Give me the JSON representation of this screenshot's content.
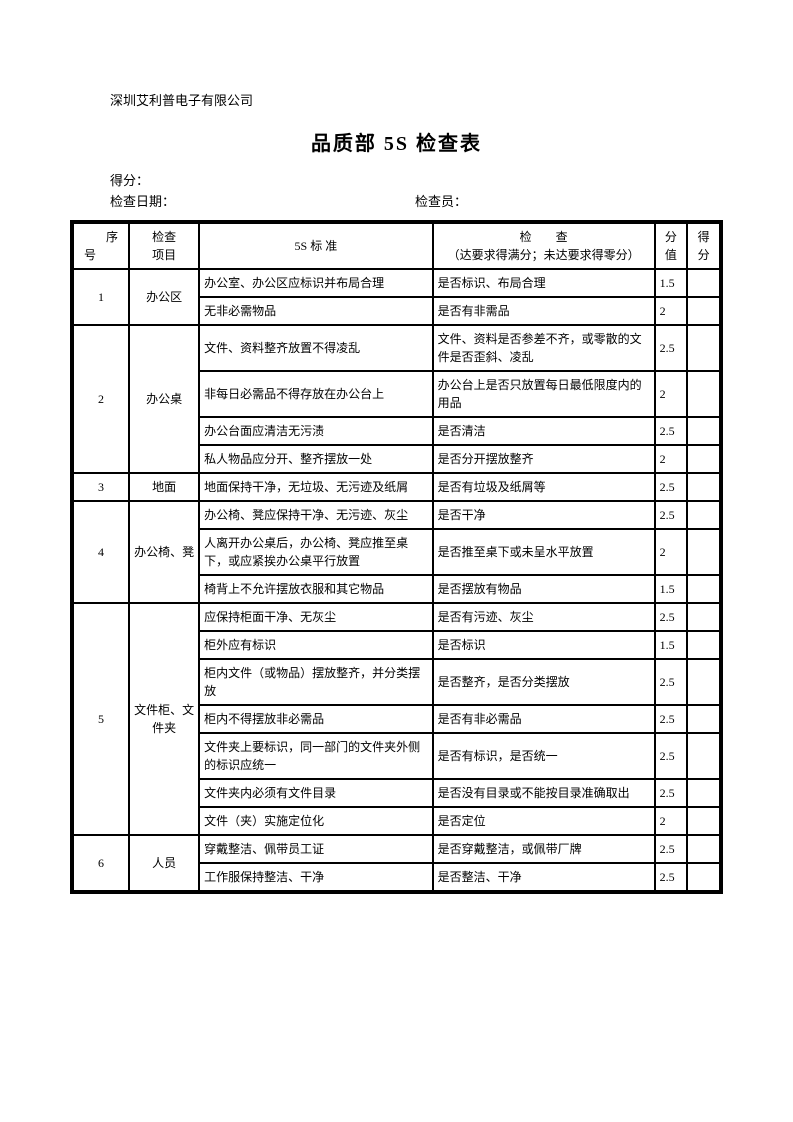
{
  "company": "深圳艾利普电子有限公司",
  "title": "品质部 5S 检查表",
  "meta": {
    "score_label": "得分：",
    "date_label": "检查日期：",
    "inspector_label": "检查员："
  },
  "headers": {
    "seq_top": "序",
    "seq_bottom": "号",
    "item": "检查\n项目",
    "standard": "5S 标 准",
    "check": "检　　查\n（达要求得满分；未达要求得零分）",
    "value": "分\n值",
    "score": "得分"
  },
  "groups": [
    {
      "seq": "1",
      "item": "办公区",
      "rows": [
        {
          "std": "办公室、办公区应标识并布局合理",
          "chk": "是否标识、布局合理",
          "val": "1.5"
        },
        {
          "std": "无非必需物品",
          "chk": "是否有非需品",
          "val": "2"
        }
      ]
    },
    {
      "seq": "2",
      "item": "办公桌",
      "rows": [
        {
          "std": "文件、资料整齐放置不得凌乱",
          "chk": "文件、资料是否参差不齐，或零散的文件是否歪斜、凌乱",
          "val": "2.5"
        },
        {
          "std": "非每日必需品不得存放在办公台上",
          "chk": "办公台上是否只放置每日最低限度内的用品",
          "val": "2"
        },
        {
          "std": "办公台面应清洁无污渍",
          "chk": "是否清洁",
          "val": "2.5"
        },
        {
          "std": "私人物品应分开、整齐摆放一处",
          "chk": "是否分开摆放整齐",
          "val": "2"
        }
      ]
    },
    {
      "seq": "3",
      "item": "地面",
      "rows": [
        {
          "std": "地面保持干净，无垃圾、无污迹及纸屑",
          "chk": "是否有垃圾及纸屑等",
          "val": "2.5"
        }
      ]
    },
    {
      "seq": "4",
      "item": "办公椅、凳",
      "rows": [
        {
          "std": "办公椅、凳应保持干净、无污迹、灰尘",
          "chk": "是否干净",
          "val": "2.5"
        },
        {
          "std": "人离开办公桌后，办公椅、凳应推至桌下，或应紧挨办公桌平行放置",
          "chk": "是否推至桌下或未呈水平放置",
          "val": "2"
        },
        {
          "std": "椅背上不允许摆放衣服和其它物品",
          "chk": "是否摆放有物品",
          "val": "1.5"
        }
      ]
    },
    {
      "seq": "5",
      "item": "文件柜、文件夹",
      "rows": [
        {
          "std": "应保持柜面干净、无灰尘",
          "chk": "是否有污迹、灰尘",
          "val": "2.5"
        },
        {
          "std": "柜外应有标识",
          "chk": "是否标识",
          "val": "1.5"
        },
        {
          "std": "柜内文件（或物品）摆放整齐，并分类摆放",
          "chk": "是否整齐，是否分类摆放",
          "val": "2.5"
        },
        {
          "std": "柜内不得摆放非必需品",
          "chk": "是否有非必需品",
          "val": "2.5"
        },
        {
          "std": "文件夹上要标识，同一部门的文件夹外侧的标识应统一",
          "chk": "是否有标识，是否统一",
          "val": "2.5"
        },
        {
          "std": "文件夹内必须有文件目录",
          "chk": "是否没有目录或不能按目录准确取出",
          "val": "2.5"
        },
        {
          "std": "文件（夹）实施定位化",
          "chk": "是否定位",
          "val": "2"
        }
      ]
    },
    {
      "seq": "6",
      "item": "人员",
      "rows": [
        {
          "std": "穿戴整洁、佩带员工证",
          "chk": "是否穿戴整洁，或佩带厂牌",
          "val": "2.5"
        },
        {
          "std": "工作服保持整洁、干净",
          "chk": "是否整洁、干净",
          "val": "2.5"
        }
      ]
    }
  ]
}
